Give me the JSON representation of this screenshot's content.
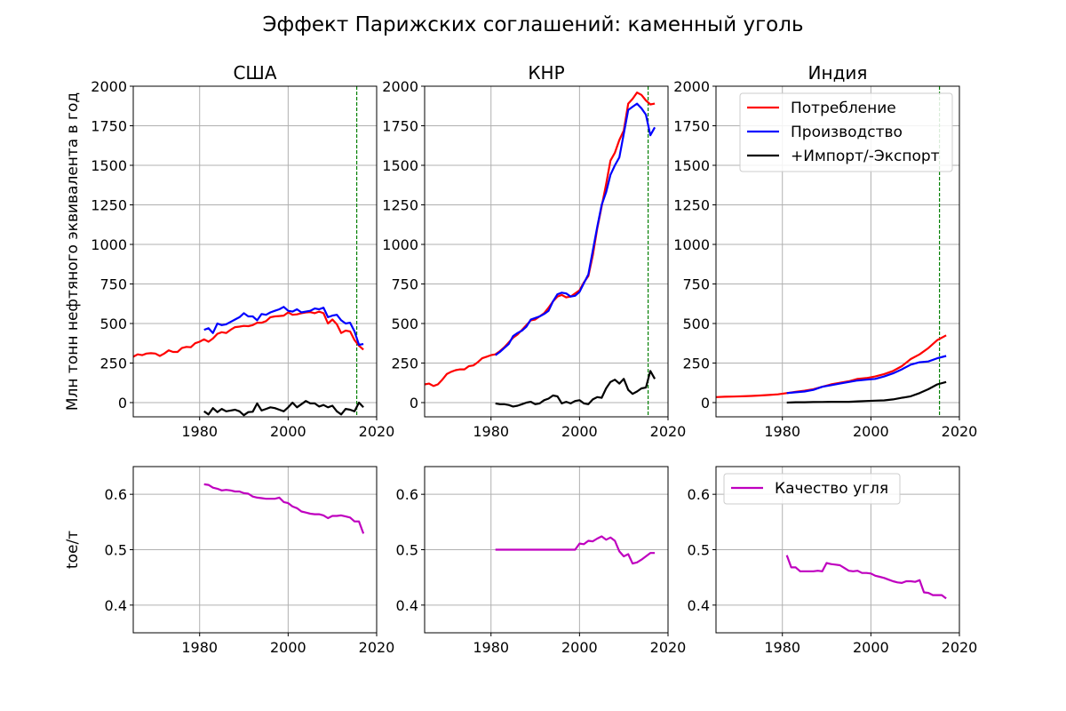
{
  "title": "Эффект Парижских соглашений: каменный уголь",
  "colors": {
    "consumption": "#ff0000",
    "production": "#0000ff",
    "import_export": "#000000",
    "coal_quality": "#bf00bf",
    "paris_marker": "#008000",
    "grid": "#b0b0b0"
  },
  "chart_data": [
    {
      "type": "line",
      "title": "США",
      "ylabel": "Млн тонн нефтяного эквивалента в год",
      "xlim": [
        1965,
        2020
      ],
      "ylim": [
        -90,
        2000
      ],
      "xticks": [
        1980,
        2000,
        2020
      ],
      "yticks": [
        0,
        250,
        500,
        750,
        1000,
        1250,
        1500,
        1750,
        2000
      ],
      "grid": true,
      "vline": 2015.5,
      "series": [
        {
          "name": "Потребление",
          "color_key": "consumption",
          "x": [
            1965,
            1966,
            1967,
            1968,
            1969,
            1970,
            1971,
            1972,
            1973,
            1974,
            1975,
            1976,
            1977,
            1978,
            1979,
            1980,
            1981,
            1982,
            1983,
            1984,
            1985,
            1986,
            1987,
            1988,
            1989,
            1990,
            1991,
            1992,
            1993,
            1994,
            1995,
            1996,
            1997,
            1998,
            1999,
            2000,
            2001,
            2002,
            2003,
            2004,
            2005,
            2006,
            2007,
            2008,
            2009,
            2010,
            2011,
            2012,
            2013,
            2014,
            2015,
            2016,
            2017
          ],
          "values": [
            290,
            305,
            300,
            310,
            312,
            310,
            295,
            310,
            330,
            320,
            320,
            345,
            352,
            350,
            375,
            385,
            400,
            385,
            405,
            435,
            445,
            440,
            460,
            477,
            480,
            485,
            483,
            490,
            505,
            505,
            515,
            540,
            545,
            547,
            550,
            570,
            555,
            558,
            565,
            570,
            572,
            565,
            575,
            565,
            500,
            525,
            495,
            440,
            455,
            450,
            395,
            360,
            335
          ]
        },
        {
          "name": "Производство",
          "color_key": "production",
          "x": [
            1981,
            1982,
            1983,
            1984,
            1985,
            1986,
            1987,
            1988,
            1989,
            1990,
            1991,
            1992,
            1993,
            1994,
            1995,
            1996,
            1997,
            1998,
            1999,
            2000,
            2001,
            2002,
            2003,
            2004,
            2005,
            2006,
            2007,
            2008,
            2009,
            2010,
            2011,
            2012,
            2013,
            2014,
            2015,
            2016,
            2017
          ],
          "values": [
            460,
            470,
            440,
            500,
            490,
            495,
            510,
            525,
            540,
            565,
            545,
            545,
            520,
            560,
            555,
            570,
            580,
            590,
            605,
            580,
            575,
            590,
            570,
            575,
            580,
            595,
            590,
            600,
            540,
            550,
            555,
            520,
            500,
            505,
            450,
            365,
            370
          ]
        },
        {
          "name": "+Импорт/-Экспорт",
          "color_key": "import_export",
          "x": [
            1981,
            1982,
            1983,
            1984,
            1985,
            1986,
            1987,
            1988,
            1989,
            1990,
            1991,
            1992,
            1993,
            1994,
            1995,
            1996,
            1997,
            1998,
            1999,
            2000,
            2001,
            2002,
            2003,
            2004,
            2005,
            2006,
            2007,
            2008,
            2009,
            2010,
            2011,
            2012,
            2013,
            2014,
            2015,
            2016,
            2017
          ],
          "values": [
            -55,
            -75,
            -35,
            -60,
            -40,
            -55,
            -50,
            -45,
            -55,
            -80,
            -60,
            -58,
            -5,
            -50,
            -40,
            -30,
            -35,
            -45,
            -55,
            -30,
            0,
            -30,
            -10,
            10,
            -5,
            -5,
            -25,
            -15,
            -30,
            -20,
            -55,
            -75,
            -40,
            -45,
            -55,
            0,
            -30
          ]
        }
      ]
    },
    {
      "type": "line",
      "title": "КНР",
      "xlim": [
        1965,
        2020
      ],
      "ylim": [
        -90,
        2000
      ],
      "xticks": [
        1980,
        2000,
        2020
      ],
      "yticks": [
        0,
        250,
        500,
        750,
        1000,
        1250,
        1500,
        1750,
        2000
      ],
      "grid": true,
      "vline": 2015.5,
      "series": [
        {
          "name": "Потребление",
          "color_key": "consumption",
          "x": [
            1965,
            1966,
            1967,
            1968,
            1969,
            1970,
            1971,
            1972,
            1973,
            1974,
            1975,
            1976,
            1977,
            1978,
            1979,
            1980,
            1981,
            1982,
            1983,
            1984,
            1985,
            1986,
            1987,
            1988,
            1989,
            1990,
            1991,
            1992,
            1993,
            1994,
            1995,
            1996,
            1997,
            1998,
            1999,
            2000,
            2001,
            2002,
            2003,
            2004,
            2005,
            2006,
            2007,
            2008,
            2009,
            2010,
            2011,
            2012,
            2013,
            2014,
            2015,
            2016,
            2017
          ],
          "values": [
            115,
            120,
            105,
            115,
            145,
            180,
            195,
            205,
            210,
            210,
            230,
            235,
            255,
            280,
            290,
            300,
            305,
            325,
            350,
            380,
            410,
            430,
            460,
            490,
            520,
            525,
            545,
            565,
            600,
            640,
            670,
            680,
            665,
            670,
            690,
            710,
            760,
            800,
            930,
            1100,
            1240,
            1380,
            1530,
            1580,
            1660,
            1720,
            1890,
            1920,
            1960,
            1945,
            1910,
            1885,
            1890
          ]
        },
        {
          "name": "Производство",
          "color_key": "production",
          "x": [
            1981,
            1982,
            1983,
            1984,
            1985,
            1986,
            1987,
            1988,
            1989,
            1990,
            1991,
            1992,
            1993,
            1994,
            1995,
            1996,
            1997,
            1998,
            1999,
            2000,
            2001,
            2002,
            2003,
            2004,
            2005,
            2006,
            2007,
            2008,
            2009,
            2010,
            2011,
            2012,
            2013,
            2014,
            2015,
            2016,
            2017
          ],
          "values": [
            300,
            320,
            345,
            370,
            420,
            440,
            455,
            480,
            525,
            535,
            545,
            560,
            580,
            640,
            685,
            695,
            690,
            670,
            675,
            700,
            755,
            810,
            960,
            1110,
            1250,
            1330,
            1440,
            1500,
            1550,
            1700,
            1850,
            1870,
            1890,
            1860,
            1820,
            1690,
            1740
          ]
        },
        {
          "name": "+Импорт/-Экспорт",
          "color_key": "import_export",
          "x": [
            1981,
            1982,
            1983,
            1984,
            1985,
            1986,
            1987,
            1988,
            1989,
            1990,
            1991,
            1992,
            1993,
            1994,
            1995,
            1996,
            1997,
            1998,
            1999,
            2000,
            2001,
            2002,
            2003,
            2004,
            2005,
            2006,
            2007,
            2008,
            2009,
            2010,
            2011,
            2012,
            2013,
            2014,
            2015,
            2016,
            2017
          ],
          "values": [
            -5,
            -10,
            -10,
            -15,
            -25,
            -20,
            -10,
            0,
            5,
            -10,
            -5,
            15,
            25,
            45,
            40,
            -5,
            5,
            -5,
            10,
            15,
            -5,
            -10,
            20,
            35,
            30,
            90,
            130,
            145,
            120,
            150,
            80,
            55,
            70,
            90,
            95,
            200,
            150
          ]
        }
      ]
    },
    {
      "type": "line",
      "title": "Индия",
      "xlim": [
        1965,
        2020
      ],
      "ylim": [
        -90,
        2000
      ],
      "xticks": [
        1980,
        2000,
        2020
      ],
      "yticks": [
        0,
        250,
        500,
        750,
        1000,
        1250,
        1500,
        1750,
        2000
      ],
      "grid": true,
      "vline": 2015.5,
      "legend": "top-right",
      "series": [
        {
          "name": "Потребление",
          "color_key": "consumption",
          "x": [
            1965,
            1967,
            1969,
            1971,
            1973,
            1975,
            1977,
            1979,
            1981,
            1983,
            1985,
            1987,
            1989,
            1991,
            1993,
            1995,
            1997,
            1999,
            2001,
            2003,
            2005,
            2007,
            2009,
            2011,
            2013,
            2015,
            2017
          ],
          "values": [
            35,
            37,
            38,
            40,
            42,
            45,
            48,
            52,
            60,
            68,
            75,
            85,
            100,
            115,
            125,
            135,
            150,
            155,
            165,
            180,
            200,
            230,
            275,
            305,
            345,
            395,
            425
          ]
        },
        {
          "name": "Производство",
          "color_key": "production",
          "x": [
            1981,
            1983,
            1985,
            1987,
            1989,
            1991,
            1993,
            1995,
            1997,
            1999,
            2001,
            2003,
            2005,
            2007,
            2009,
            2011,
            2013,
            2015,
            2017
          ],
          "values": [
            60,
            65,
            70,
            80,
            100,
            110,
            120,
            130,
            140,
            145,
            150,
            165,
            185,
            210,
            240,
            255,
            260,
            280,
            295
          ]
        },
        {
          "name": "+Импорт/-Экспорт",
          "color_key": "import_export",
          "x": [
            1981,
            1983,
            1985,
            1987,
            1989,
            1991,
            1993,
            1995,
            1997,
            1999,
            2001,
            2003,
            2005,
            2007,
            2009,
            2011,
            2013,
            2015,
            2017
          ],
          "values": [
            0,
            2,
            2,
            3,
            4,
            5,
            5,
            5,
            8,
            10,
            12,
            14,
            20,
            30,
            40,
            60,
            85,
            115,
            130
          ]
        }
      ]
    },
    {
      "type": "line",
      "ylabel": "toe/т",
      "xlim": [
        1965,
        2020
      ],
      "ylim": [
        0.35,
        0.65
      ],
      "xticks": [
        1980,
        2000,
        2020
      ],
      "yticks": [
        0.4,
        0.5,
        0.6
      ],
      "grid": true,
      "series": [
        {
          "name": "Качество угля",
          "color_key": "coal_quality",
          "x": [
            1981,
            1982,
            1983,
            1984,
            1985,
            1986,
            1987,
            1988,
            1989,
            1990,
            1991,
            1992,
            1993,
            1994,
            1995,
            1996,
            1997,
            1998,
            1999,
            2000,
            2001,
            2002,
            2003,
            2004,
            2005,
            2006,
            2007,
            2008,
            2009,
            2010,
            2011,
            2012,
            2013,
            2014,
            2015,
            2016,
            2017
          ],
          "values": [
            0.618,
            0.617,
            0.612,
            0.61,
            0.607,
            0.608,
            0.607,
            0.605,
            0.605,
            0.602,
            0.601,
            0.596,
            0.594,
            0.593,
            0.592,
            0.592,
            0.592,
            0.594,
            0.586,
            0.584,
            0.578,
            0.575,
            0.569,
            0.567,
            0.565,
            0.564,
            0.564,
            0.562,
            0.557,
            0.561,
            0.561,
            0.562,
            0.56,
            0.558,
            0.551,
            0.551,
            0.529
          ]
        }
      ]
    },
    {
      "type": "line",
      "xlim": [
        1965,
        2020
      ],
      "ylim": [
        0.35,
        0.65
      ],
      "xticks": [
        1980,
        2000,
        2020
      ],
      "yticks": [
        0.4,
        0.5,
        0.6
      ],
      "grid": true,
      "series": [
        {
          "name": "Качество угля",
          "color_key": "coal_quality",
          "x": [
            1981,
            1985,
            1990,
            1995,
            1999,
            2000,
            2001,
            2002,
            2003,
            2004,
            2005,
            2006,
            2007,
            2008,
            2009,
            2010,
            2011,
            2012,
            2013,
            2014,
            2015,
            2016,
            2017
          ],
          "values": [
            0.5,
            0.5,
            0.5,
            0.5,
            0.5,
            0.511,
            0.51,
            0.516,
            0.515,
            0.52,
            0.524,
            0.518,
            0.522,
            0.516,
            0.497,
            0.488,
            0.492,
            0.475,
            0.477,
            0.482,
            0.488,
            0.494,
            0.494
          ]
        }
      ]
    },
    {
      "type": "line",
      "xlim": [
        1965,
        2020
      ],
      "ylim": [
        0.35,
        0.65
      ],
      "xticks": [
        1980,
        2000,
        2020
      ],
      "yticks": [
        0.4,
        0.5,
        0.6
      ],
      "grid": true,
      "legend": "top-left",
      "series": [
        {
          "name": "Качество угля",
          "color_key": "coal_quality",
          "x": [
            1981,
            1982,
            1983,
            1984,
            1985,
            1986,
            1987,
            1988,
            1989,
            1990,
            1991,
            1992,
            1993,
            1994,
            1995,
            1996,
            1997,
            1998,
            1999,
            2000,
            2001,
            2002,
            2003,
            2004,
            2005,
            2006,
            2007,
            2008,
            2009,
            2010,
            2011,
            2012,
            2013,
            2014,
            2015,
            2016,
            2017
          ],
          "values": [
            0.49,
            0.468,
            0.468,
            0.461,
            0.461,
            0.461,
            0.461,
            0.462,
            0.461,
            0.476,
            0.474,
            0.473,
            0.472,
            0.467,
            0.462,
            0.461,
            0.462,
            0.458,
            0.458,
            0.457,
            0.453,
            0.451,
            0.449,
            0.446,
            0.443,
            0.441,
            0.44,
            0.443,
            0.443,
            0.442,
            0.445,
            0.423,
            0.422,
            0.418,
            0.418,
            0.418,
            0.412
          ]
        }
      ]
    }
  ]
}
